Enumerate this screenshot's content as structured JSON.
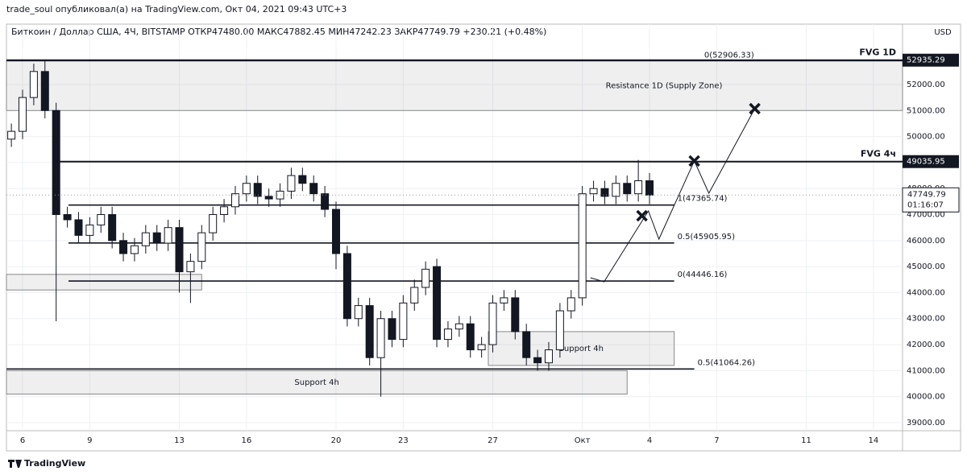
{
  "header": "trade_soul опубликовал(а) на TradingView.com, Окт 04, 2021 09:43 UTC+3",
  "footer": "TradingView",
  "chart_data": {
    "type": "candlestick",
    "title": "Биткоин / Доллар США, 4Ч, BITSTAMP  ОТКР47480.00  МАКС47882.45  МИН47242.23  ЗАКР47749.79  +230.21 (+0.48%)",
    "currency": "USD",
    "xlim": [
      5.28,
      45.3
    ],
    "xticks": [
      6,
      9,
      13,
      16,
      20,
      23,
      27,
      {
        "value": 31,
        "label": "Окт"
      },
      {
        "value": 34,
        "label": "4"
      },
      {
        "value": 37,
        "label": "7"
      },
      {
        "value": 41,
        "label": "11"
      },
      {
        "value": 44,
        "label": "14"
      }
    ],
    "ylim": [
      38690,
      54320
    ],
    "yticks": [
      {
        "value": 39000,
        "label": "39000.00"
      },
      {
        "value": 40000,
        "label": "40000.00"
      },
      {
        "value": 41000,
        "label": "41000.00"
      },
      {
        "value": 42000,
        "label": "42000.00"
      },
      {
        "value": 43000,
        "label": "43000.00"
      },
      {
        "value": 44000,
        "label": "44000.00"
      },
      {
        "value": 45000,
        "label": "45000.00"
      },
      {
        "value": 46000,
        "label": "46000.00"
      },
      {
        "value": 47000,
        "label": "47000.00"
      },
      {
        "value": 48000,
        "label": "48000.00"
      },
      {
        "value": 49000,
        "label": "49000.00"
      },
      {
        "value": 50000,
        "label": "50000.00"
      },
      {
        "value": 51000,
        "label": "51000.00"
      },
      {
        "value": 52000,
        "label": "52000.00"
      }
    ],
    "grid": true,
    "x": [
      5.5,
      6,
      6.5,
      7,
      7.5,
      8,
      8.5,
      9,
      9.5,
      10,
      10.5,
      11,
      11.5,
      12,
      12.5,
      13,
      13.5,
      14,
      14.5,
      15,
      15.5,
      16,
      16.5,
      17,
      17.5,
      18,
      18.5,
      19,
      19.5,
      20,
      20.5,
      21,
      21.5,
      22,
      22.5,
      23,
      23.5,
      24,
      24.5,
      25,
      25.5,
      26,
      26.5,
      27,
      27.5,
      28,
      28.5,
      29,
      29.5,
      30,
      30.5,
      31,
      31.5,
      32,
      32.5,
      33,
      33.5,
      34
    ],
    "open": [
      49900,
      50200,
      51500,
      52500,
      51000,
      47000,
      46800,
      46200,
      46600,
      47000,
      46000,
      45500,
      45800,
      46300,
      45900,
      46500,
      44800,
      45200,
      46300,
      47000,
      47300,
      47800,
      48200,
      47700,
      47600,
      47900,
      48500,
      48200,
      47800,
      47200,
      45500,
      43000,
      43500,
      41500,
      43000,
      42200,
      43600,
      44200,
      45000,
      42200,
      42600,
      42800,
      41800,
      42000,
      43600,
      43800,
      42500,
      41500,
      41300,
      41800,
      43300,
      43800,
      47800,
      48000,
      47700,
      48200,
      47800,
      48300
    ],
    "high": [
      50500,
      51800,
      52800,
      52950,
      51300,
      47300,
      47100,
      46900,
      47300,
      47300,
      46300,
      46100,
      46600,
      46600,
      46800,
      46800,
      45500,
      46600,
      47300,
      47600,
      48100,
      48500,
      48500,
      48000,
      48200,
      48800,
      48800,
      48500,
      48100,
      47500,
      45800,
      43800,
      43800,
      43300,
      43300,
      43900,
      44500,
      45200,
      45300,
      42900,
      43100,
      43100,
      42300,
      43900,
      44100,
      44100,
      42800,
      41800,
      42100,
      43600,
      44100,
      48100,
      48300,
      48300,
      48500,
      48500,
      49100,
      48600
    ],
    "low": [
      49600,
      49900,
      51200,
      50700,
      42900,
      46500,
      45900,
      45900,
      46300,
      45700,
      45200,
      45200,
      45500,
      45600,
      45600,
      44000,
      43600,
      44900,
      46000,
      46700,
      47000,
      47500,
      47400,
      47300,
      47300,
      47600,
      47900,
      47500,
      46900,
      44900,
      42700,
      42700,
      41200,
      40000,
      41900,
      41900,
      43300,
      43900,
      41900,
      41900,
      42300,
      41500,
      41500,
      41700,
      43300,
      42200,
      41200,
      41000,
      41000,
      41500,
      43000,
      43500,
      47500,
      47400,
      47400,
      47500,
      47500,
      47400
    ],
    "close": [
      50200,
      51500,
      52500,
      51000,
      47000,
      46800,
      46200,
      46600,
      47000,
      46000,
      45500,
      45800,
      46300,
      45900,
      46500,
      44800,
      45200,
      46300,
      47000,
      47300,
      47800,
      48200,
      47700,
      47600,
      47900,
      48500,
      48200,
      47800,
      47200,
      45500,
      43000,
      43500,
      41500,
      43000,
      42200,
      43600,
      44200,
      44900,
      42200,
      42600,
      42800,
      41800,
      42000,
      43600,
      43800,
      42500,
      41500,
      41300,
      41800,
      43300,
      43800,
      47800,
      48000,
      47700,
      48200,
      47800,
      48300,
      47750
    ],
    "zones": [
      {
        "label": "Resistance 1D (Supply Zone)",
        "low": 51000,
        "high": 52906.33,
        "from": 5.28,
        "to": 45.3
      },
      {
        "label": "Support 4h",
        "low": 41200,
        "high": 42500,
        "from": 26.8,
        "to": 35.1
      },
      {
        "label": "Support 4h",
        "low": 40100,
        "high": 41000,
        "from": 5.28,
        "to": 33.0
      },
      {
        "low": 44100,
        "high": 44700,
        "from": 5.28,
        "to": 14.0
      }
    ],
    "levels": [
      {
        "label": "0(52906.33)",
        "value": 52906.33,
        "from": 5.28,
        "to": 36.3
      },
      {
        "label": "1(47365.74)",
        "value": 47365.74,
        "from": 8.05,
        "to": 35.1
      },
      {
        "label": "0.5(45905.95)",
        "value": 45905.95,
        "from": 8.05,
        "to": 35.1
      },
      {
        "label": "0(44446.16)",
        "value": 44446.16,
        "from": 8.05,
        "to": 35.1
      },
      {
        "label": "0.5(41064.26)",
        "value": 41064.26,
        "from": 5.28,
        "to": 36.0
      }
    ],
    "fvg": [
      {
        "label": "FVG 1D",
        "value": 52935.29,
        "from": 5.28
      },
      {
        "label": "FVG 4ч",
        "value": 49035.95,
        "from": 7.45
      }
    ],
    "last_price": 47749.79,
    "countdown": "01:16:07",
    "projection": {
      "x": [
        31.36,
        31.97,
        33.95,
        34.42,
        36.0,
        36.65,
        38.7
      ],
      "y": [
        44570,
        44415,
        47140,
        46056,
        49060,
        47820,
        51070
      ]
    }
  }
}
